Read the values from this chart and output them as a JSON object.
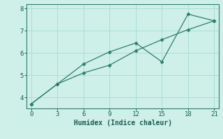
{
  "line1_x": [
    0,
    3,
    6,
    9,
    12,
    15,
    18,
    21
  ],
  "line1_y": [
    3.7,
    4.6,
    5.5,
    6.05,
    6.45,
    5.6,
    7.75,
    7.45
  ],
  "line2_x": [
    0,
    3,
    6,
    9,
    12,
    15,
    18,
    21
  ],
  "line2_y": [
    3.7,
    4.6,
    5.1,
    5.45,
    6.1,
    6.6,
    7.05,
    7.45
  ],
  "line_color": "#2e7d6e",
  "bg_color": "#cef0e8",
  "grid_color": "#aaddd5",
  "xlabel": "Humidex (Indice chaleur)",
  "xlim": [
    -0.5,
    21.5
  ],
  "ylim": [
    3.5,
    8.2
  ],
  "xticks": [
    0,
    3,
    6,
    9,
    12,
    15,
    18,
    21
  ],
  "yticks": [
    4,
    5,
    6,
    7,
    8
  ],
  "font_color": "#1a5c52",
  "marker": "D",
  "markersize": 2.5,
  "linewidth": 0.9,
  "tick_labelsize": 6.5,
  "xlabel_fontsize": 7,
  "spine_color": "#2e7d6e"
}
